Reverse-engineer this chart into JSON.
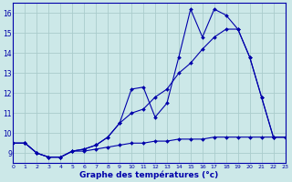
{
  "title": "Graphe des températures (°c)",
  "bg_color": "#cce8e8",
  "grid_color": "#aacccc",
  "line_color": "#0000aa",
  "x_min": 0,
  "x_max": 23,
  "y_min": 8.5,
  "y_max": 16.5,
  "line1": {
    "x": [
      0,
      1,
      2,
      3,
      4,
      5,
      6,
      7,
      8,
      9,
      10,
      11,
      12,
      13,
      14,
      15,
      16,
      17,
      18,
      19,
      20,
      21,
      22,
      23
    ],
    "y": [
      9.5,
      9.5,
      9.0,
      8.8,
      8.8,
      9.1,
      9.1,
      9.2,
      9.3,
      9.4,
      9.5,
      9.5,
      9.6,
      9.6,
      9.7,
      9.7,
      9.7,
      9.8,
      9.8,
      9.8,
      9.8,
      9.8,
      9.8,
      9.8
    ]
  },
  "line2": {
    "x": [
      0,
      1,
      2,
      3,
      4,
      5,
      6,
      7,
      8,
      9,
      10,
      11,
      12,
      13,
      14,
      15,
      16,
      17,
      18,
      19,
      20,
      21,
      22,
      23
    ],
    "y": [
      9.5,
      9.5,
      9.0,
      8.8,
      8.8,
      9.1,
      9.2,
      9.4,
      9.8,
      10.5,
      11.0,
      11.2,
      11.8,
      12.2,
      13.0,
      13.5,
      14.2,
      14.8,
      15.2,
      15.2,
      13.8,
      11.8,
      9.8,
      9.8
    ]
  },
  "line3": {
    "x": [
      0,
      1,
      2,
      3,
      4,
      5,
      6,
      7,
      8,
      9,
      10,
      11,
      12,
      13,
      14,
      15,
      16,
      17,
      18,
      19,
      20,
      21,
      22,
      23
    ],
    "y": [
      9.5,
      9.5,
      9.0,
      8.8,
      8.8,
      9.1,
      9.2,
      9.4,
      9.8,
      10.5,
      12.2,
      12.3,
      10.8,
      11.5,
      13.8,
      16.2,
      14.8,
      16.2,
      15.9,
      15.2,
      13.8,
      11.8,
      9.8,
      9.8
    ]
  },
  "yticks": [
    9,
    10,
    11,
    12,
    13,
    14,
    15,
    16
  ],
  "xticks": [
    0,
    1,
    2,
    3,
    4,
    5,
    6,
    7,
    8,
    9,
    10,
    11,
    12,
    13,
    14,
    15,
    16,
    17,
    18,
    19,
    20,
    21,
    22,
    23
  ]
}
